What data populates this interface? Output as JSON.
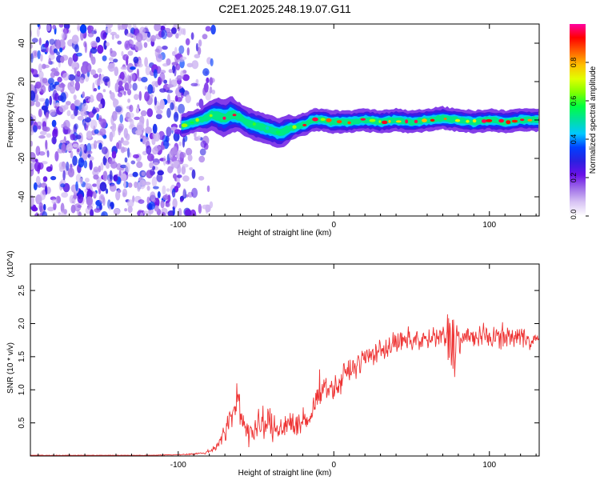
{
  "title": "C2E1.2025.248.19.07.G11",
  "chart_data": [
    {
      "type": "heatmap",
      "title": "C2E1.2025.248.19.07.G11",
      "xlabel": "Height of straight line (km)",
      "ylabel": "Frequency (Hz)",
      "xlim": [
        -195,
        132
      ],
      "ylim": [
        -50,
        50
      ],
      "x_ticks": [
        -100,
        0,
        100
      ],
      "x_tick_labels": [
        "-100",
        "0",
        "100"
      ],
      "y_ticks": [
        -40,
        -20,
        0,
        20,
        40
      ],
      "y_tick_labels": [
        "-40",
        "-20",
        "0",
        "20",
        "40"
      ],
      "colorbar": {
        "label": "Normalized spectral amplitude",
        "range": [
          0,
          1
        ],
        "ticks": [
          0,
          0.2,
          0.4,
          0.6,
          0.8
        ],
        "tick_labels": [
          "0.0",
          "0.2",
          "0.4",
          "0.6",
          "0.8"
        ],
        "colors": [
          "#ffffff",
          "#d8c4f4",
          "#a070e8",
          "#6a10e8",
          "#2a20e0",
          "#0040ff",
          "#00c8ff",
          "#00e0a0",
          "#00ff40",
          "#80ff00",
          "#e0ff00",
          "#ffc000",
          "#ff6000",
          "#ff0000",
          "#ff00a0"
        ]
      },
      "noise_region_x": [
        -195,
        -85
      ],
      "ridge": {
        "x": [
          -98,
          -94,
          -90,
          -86,
          -82,
          -78,
          -74,
          -70,
          -66,
          -62,
          -58,
          -54,
          -50,
          -46,
          -42,
          -38,
          -34,
          -30,
          -26,
          -22,
          -18,
          -14,
          -10,
          -6,
          -2,
          2,
          10,
          20,
          30,
          40,
          50,
          60,
          70,
          80,
          90,
          100,
          110,
          120,
          132
        ],
        "freq": [
          -3,
          -2,
          -1,
          0,
          1,
          3,
          2,
          1,
          3,
          2,
          0,
          -2,
          -3,
          -4,
          -5,
          -6,
          -7,
          -5,
          -4,
          -3,
          -2,
          0,
          0,
          0,
          -1,
          -1,
          -1,
          0,
          -1,
          0,
          -1,
          0,
          1,
          0,
          -1,
          0,
          -1,
          0,
          0
        ],
        "width_hz": [
          3,
          3,
          3,
          3,
          4,
          4,
          5,
          5,
          5,
          4,
          4,
          4,
          4,
          4,
          4,
          4,
          4,
          4,
          3,
          3,
          3,
          3,
          3,
          3,
          3,
          3,
          3,
          3,
          3,
          3,
          3,
          3,
          3,
          3,
          3,
          3,
          3,
          3,
          3
        ],
        "amplitude": [
          0.2,
          0.25,
          0.3,
          0.35,
          0.4,
          0.45,
          0.5,
          0.5,
          0.5,
          0.45,
          0.4,
          0.35,
          0.35,
          0.3,
          0.3,
          0.3,
          0.3,
          0.35,
          0.4,
          0.45,
          0.45,
          0.45,
          0.5,
          0.5,
          0.55,
          0.55,
          0.55,
          0.5,
          0.5,
          0.5,
          0.5,
          0.5,
          0.55,
          0.5,
          0.5,
          0.5,
          0.5,
          0.5,
          0.5
        ]
      }
    },
    {
      "type": "line",
      "xlabel": "Height of straight line (km)",
      "ylabel": "SNR (10 * v/v)",
      "y_multiplier_label": "(x10^4)",
      "xlim": [
        -195,
        132
      ],
      "ylim": [
        0,
        2.9
      ],
      "x_ticks": [
        -100,
        0,
        100
      ],
      "x_tick_labels": [
        "-100",
        "0",
        "100"
      ],
      "y_ticks": [
        0.5,
        1.0,
        1.5,
        2.0,
        2.5
      ],
      "y_tick_labels": [
        "0.5",
        "1.0",
        "1.5",
        "2.0",
        "2.5"
      ],
      "series": [
        {
          "name": "SNR",
          "color": "#ee3333",
          "x": [
            -195,
            -180,
            -160,
            -140,
            -120,
            -100,
            -90,
            -82,
            -78,
            -74,
            -70,
            -66,
            -62,
            -60,
            -58,
            -54,
            -50,
            -46,
            -42,
            -38,
            -34,
            -30,
            -26,
            -22,
            -18,
            -14,
            -10,
            -8,
            -4,
            0,
            4,
            6,
            10,
            14,
            18,
            22,
            26,
            30,
            40,
            50,
            60,
            70,
            74,
            76,
            78,
            80,
            90,
            100,
            110,
            120,
            132
          ],
          "mean": [
            0.01,
            0.01,
            0.01,
            0.01,
            0.01,
            0.02,
            0.03,
            0.05,
            0.1,
            0.2,
            0.35,
            0.55,
            0.9,
            0.7,
            0.5,
            0.35,
            0.4,
            0.45,
            0.5,
            0.4,
            0.45,
            0.5,
            0.5,
            0.45,
            0.5,
            0.6,
            1.0,
            1.05,
            1.05,
            1.0,
            1.1,
            1.2,
            1.3,
            1.35,
            1.45,
            1.5,
            1.55,
            1.6,
            1.7,
            1.75,
            1.75,
            1.8,
            1.8,
            1.75,
            1.8,
            1.75,
            1.8,
            1.8,
            1.8,
            1.8,
            1.75
          ],
          "spread": [
            0.005,
            0.005,
            0.005,
            0.005,
            0.005,
            0.01,
            0.02,
            0.03,
            0.08,
            0.15,
            0.25,
            0.35,
            0.55,
            0.4,
            0.3,
            0.3,
            0.35,
            0.4,
            0.35,
            0.35,
            0.35,
            0.3,
            0.35,
            0.35,
            0.35,
            0.35,
            0.35,
            0.3,
            0.25,
            0.25,
            0.3,
            0.3,
            0.25,
            0.25,
            0.25,
            0.25,
            0.25,
            0.25,
            0.25,
            0.3,
            0.25,
            0.3,
            0.6,
            0.9,
            0.8,
            0.4,
            0.25,
            0.25,
            0.25,
            0.25,
            0.2
          ]
        }
      ]
    }
  ]
}
